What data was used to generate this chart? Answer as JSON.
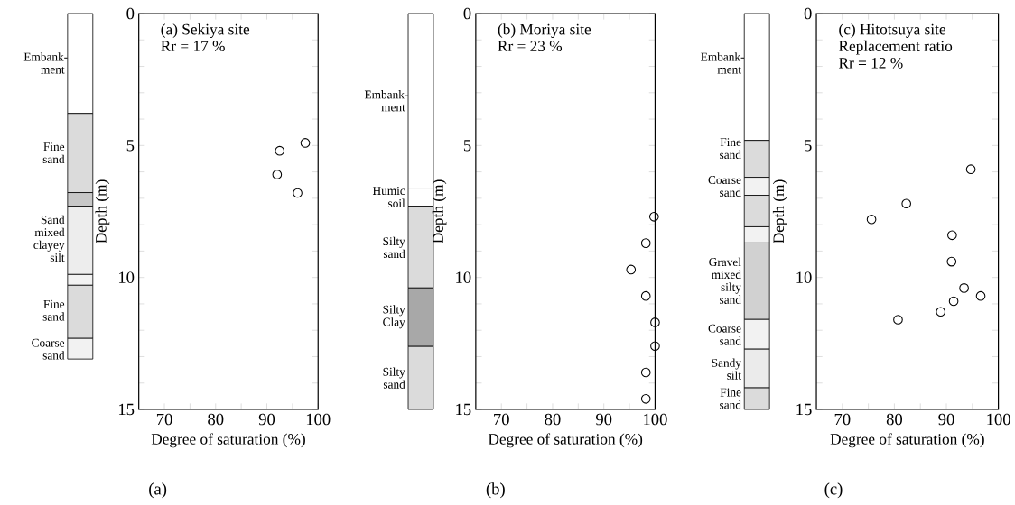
{
  "chart_data": [
    {
      "type": "scatter",
      "title": "(a) Sekiya site",
      "subtitle": "Rr = 17 %",
      "xlabel": "Degree of saturation (%)",
      "ylabel": "Depth (m)",
      "x": [
        97.5,
        92.5,
        92,
        96
      ],
      "values": [
        4.9,
        5.2,
        6.1,
        6.8
      ],
      "color": "#000000",
      "marker": "circle",
      "xlim": [
        65,
        100
      ],
      "xticks": [
        70,
        {
          "value": 75,
          "label": null
        },
        80,
        {
          "value": 85,
          "label": null
        },
        90,
        {
          "value": 95,
          "label": null
        },
        100
      ],
      "ylim": [
        15,
        0
      ],
      "yticks": [
        0,
        {
          "value": 1,
          "label": null
        },
        {
          "value": 2,
          "label": null
        },
        {
          "value": 3,
          "label": null
        },
        {
          "value": 4,
          "label": null
        },
        5,
        {
          "value": 6,
          "label": null
        },
        {
          "value": 7,
          "label": null
        },
        {
          "value": 8,
          "label": null
        },
        {
          "value": 9,
          "label": null
        },
        10,
        {
          "value": 11,
          "label": null
        },
        {
          "value": 12,
          "label": null
        },
        {
          "value": 13,
          "label": null
        },
        {
          "value": 14,
          "label": null
        },
        15
      ],
      "annotations": [
        "Embank-ment",
        "Fine sand",
        "Sand mixed clayey silt",
        "Fine sand",
        "Coarse sand",
        "(a)"
      ]
    },
    {
      "type": "scatter",
      "title": "(b) Moriya site",
      "subtitle": "Rr = 23 %",
      "xlabel": "Degree of saturation (%)",
      "ylabel": "Depth (m)",
      "x": [
        99.8,
        98.2,
        95.3,
        98.2,
        100,
        100,
        98.2,
        98.2
      ],
      "values": [
        7.7,
        8.7,
        9.7,
        10.7,
        11.7,
        12.6,
        13.6,
        14.6
      ],
      "color": "#000000",
      "marker": "circle",
      "xlim": [
        65,
        100
      ],
      "xticks": [
        70,
        {
          "value": 75,
          "label": null
        },
        80,
        {
          "value": 85,
          "label": null
        },
        90,
        {
          "value": 95,
          "label": null
        },
        100
      ],
      "ylim": [
        15,
        0
      ],
      "yticks": [
        0,
        {
          "value": 1,
          "label": null
        },
        {
          "value": 2,
          "label": null
        },
        {
          "value": 3,
          "label": null
        },
        {
          "value": 4,
          "label": null
        },
        5,
        {
          "value": 6,
          "label": null
        },
        {
          "value": 7,
          "label": null
        },
        {
          "value": 8,
          "label": null
        },
        {
          "value": 9,
          "label": null
        },
        10,
        {
          "value": 11,
          "label": null
        },
        {
          "value": 12,
          "label": null
        },
        {
          "value": 13,
          "label": null
        },
        {
          "value": 14,
          "label": null
        },
        15
      ],
      "annotations": [
        "Embank-ment",
        "Humic soil",
        "Silty sand",
        "Silty Clay",
        "Silty sand",
        "(b)"
      ]
    },
    {
      "type": "scatter",
      "title": "(c) Hitotsuya site",
      "subtitle": "Replacement ratio Rr = 12 %",
      "xlabel": "Degree of saturation (%)",
      "ylabel": "Depth (m)",
      "x": [
        94.7,
        82.3,
        75.6,
        91.1,
        91.0,
        93.4,
        96.6,
        91.4,
        88.9,
        80.7
      ],
      "values": [
        5.9,
        7.2,
        7.8,
        8.4,
        9.4,
        10.4,
        10.7,
        10.9,
        11.3,
        11.6
      ],
      "color": "#000000",
      "marker": "circle",
      "xlim": [
        65,
        100
      ],
      "xticks": [
        70,
        {
          "value": 75,
          "label": null
        },
        80,
        {
          "value": 85,
          "label": null
        },
        90,
        {
          "value": 95,
          "label": null
        },
        100
      ],
      "ylim": [
        15,
        0
      ],
      "yticks": [
        0,
        {
          "value": 1,
          "label": null
        },
        {
          "value": 2,
          "label": null
        },
        {
          "value": 3,
          "label": null
        },
        {
          "value": 4,
          "label": null
        },
        5,
        {
          "value": 6,
          "label": null
        },
        {
          "value": 7,
          "label": null
        },
        {
          "value": 8,
          "label": null
        },
        {
          "value": 9,
          "label": null
        },
        10,
        {
          "value": 11,
          "label": null
        },
        {
          "value": 12,
          "label": null
        },
        {
          "value": 13,
          "label": null
        },
        {
          "value": 14,
          "label": null
        },
        15
      ],
      "annotations": [
        "Embank-ment",
        "Fine sand",
        "Coarse sand",
        "Gravel mixed silty sand",
        "Coarse sand",
        "Sandy silt",
        "Fine sand",
        "(c)"
      ]
    }
  ]
}
